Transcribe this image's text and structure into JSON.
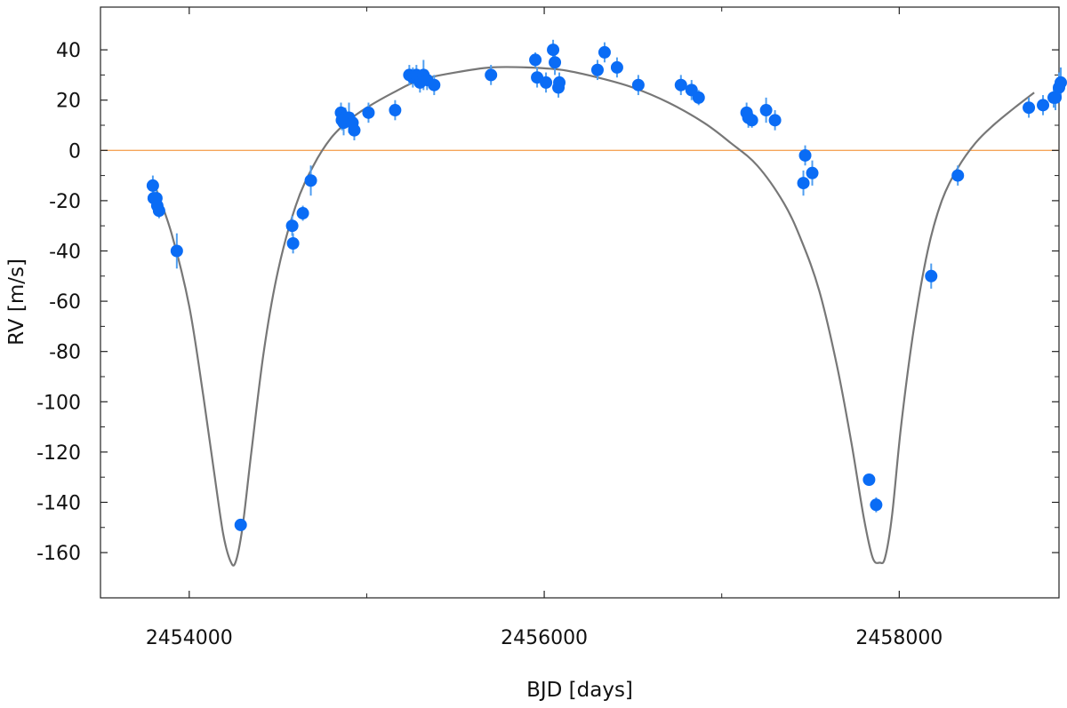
{
  "chart_data": {
    "type": "scatter",
    "title": "",
    "xlabel": "BJD [days]",
    "ylabel": "RV [m/s]",
    "xlim": [
      2453500,
      2458900
    ],
    "ylim": [
      -178,
      57
    ],
    "grid": false,
    "x_ticks": [
      2454000,
      2456000,
      2458000
    ],
    "x_tick_labels": [
      "2454000",
      "2456000",
      "2458000"
    ],
    "x_minor_ticks": [
      2455000,
      2457000
    ],
    "y_ticks": [
      40,
      20,
      0,
      -20,
      -40,
      -60,
      -80,
      -100,
      -120,
      -140,
      -160
    ],
    "y_tick_labels": [
      "40",
      "20",
      "0",
      "-20",
      "-40",
      "-60",
      "-80",
      "-100",
      "-120",
      "-140",
      "-160"
    ],
    "zero_line": {
      "y": 0,
      "color": "#f5a55a"
    },
    "colors": {
      "points": "#0a6cf5",
      "errorbars": "#4f9ef0",
      "model": "#777777",
      "axes": "#222222"
    },
    "model_curve": {
      "x": [
        2453796,
        2453900,
        2454000,
        2454080,
        2454140,
        2454190,
        2454230,
        2454260,
        2454300,
        2454350,
        2454420,
        2454500,
        2454600,
        2454700,
        2454800,
        2454900,
        2455000,
        2455150,
        2455300,
        2455500,
        2455700,
        2455900,
        2456100,
        2456300,
        2456500,
        2456700,
        2456900,
        2457050,
        2457200,
        2457350,
        2457450,
        2457550,
        2457650,
        2457730,
        2457800,
        2457850,
        2457890,
        2457920,
        2457960,
        2458010,
        2458080,
        2458160,
        2458240,
        2458330,
        2458430,
        2458530,
        2458650,
        2458760
      ],
      "y": [
        -12,
        -33,
        -62,
        -98,
        -128,
        -152,
        -163,
        -164,
        -150,
        -120,
        -80,
        -48,
        -22,
        -6,
        5,
        12,
        17,
        23,
        28,
        31,
        33,
        33,
        32,
        29,
        25,
        19,
        11,
        3,
        -6,
        -21,
        -36,
        -56,
        -86,
        -116,
        -146,
        -162,
        -164,
        -162,
        -145,
        -110,
        -72,
        -40,
        -20,
        -7,
        3,
        10,
        17,
        23
      ]
    },
    "series": [
      {
        "x": [
          2453795,
          2453800,
          2453815,
          2453820,
          2453830,
          2453930,
          2454290,
          2454580,
          2454585,
          2454640,
          2454685,
          2454855,
          2454860,
          2454870,
          2454880,
          2454900,
          2454920,
          2454930,
          2455010,
          2455160,
          2455240,
          2455260,
          2455280,
          2455300,
          2455320,
          2455340,
          2455380,
          2455700,
          2455950,
          2455960,
          2456010,
          2456050,
          2456060,
          2456080,
          2456085,
          2456300,
          2456340,
          2456410,
          2456530,
          2456770,
          2456830,
          2456870,
          2457140,
          2457150,
          2457170,
          2457250,
          2457300,
          2457460,
          2457470,
          2457510,
          2457830,
          2457870,
          2458180,
          2458330,
          2458730,
          2458810,
          2458870,
          2458880,
          2458900,
          2458910
        ],
        "y": [
          -14,
          -19,
          -19,
          -22,
          -24,
          -40,
          -149,
          -30,
          -37,
          -25,
          -12,
          15,
          12,
          11,
          13,
          13,
          11,
          8,
          15,
          16,
          30,
          29,
          30,
          27,
          30,
          28,
          26,
          30,
          36,
          29,
          27,
          40,
          35,
          25,
          27,
          32,
          39,
          33,
          26,
          26,
          24,
          21,
          15,
          13,
          12,
          16,
          12,
          -13,
          -2,
          -9,
          -131,
          -141,
          -50,
          -10,
          17,
          18,
          21,
          21,
          25,
          27
        ],
        "err": [
          4,
          3,
          3,
          4,
          3,
          7,
          2,
          4,
          4,
          3,
          6,
          4,
          4,
          5,
          4,
          6,
          4,
          4,
          4,
          4,
          4,
          4,
          4,
          4,
          6,
          4,
          4,
          4,
          3,
          4,
          4,
          4,
          5,
          4,
          4,
          4,
          4,
          4,
          4,
          4,
          4,
          3,
          4,
          4,
          3,
          5,
          4,
          5,
          4,
          5,
          2,
          3,
          5,
          4,
          4,
          4,
          4,
          5,
          6,
          6
        ]
      }
    ]
  }
}
